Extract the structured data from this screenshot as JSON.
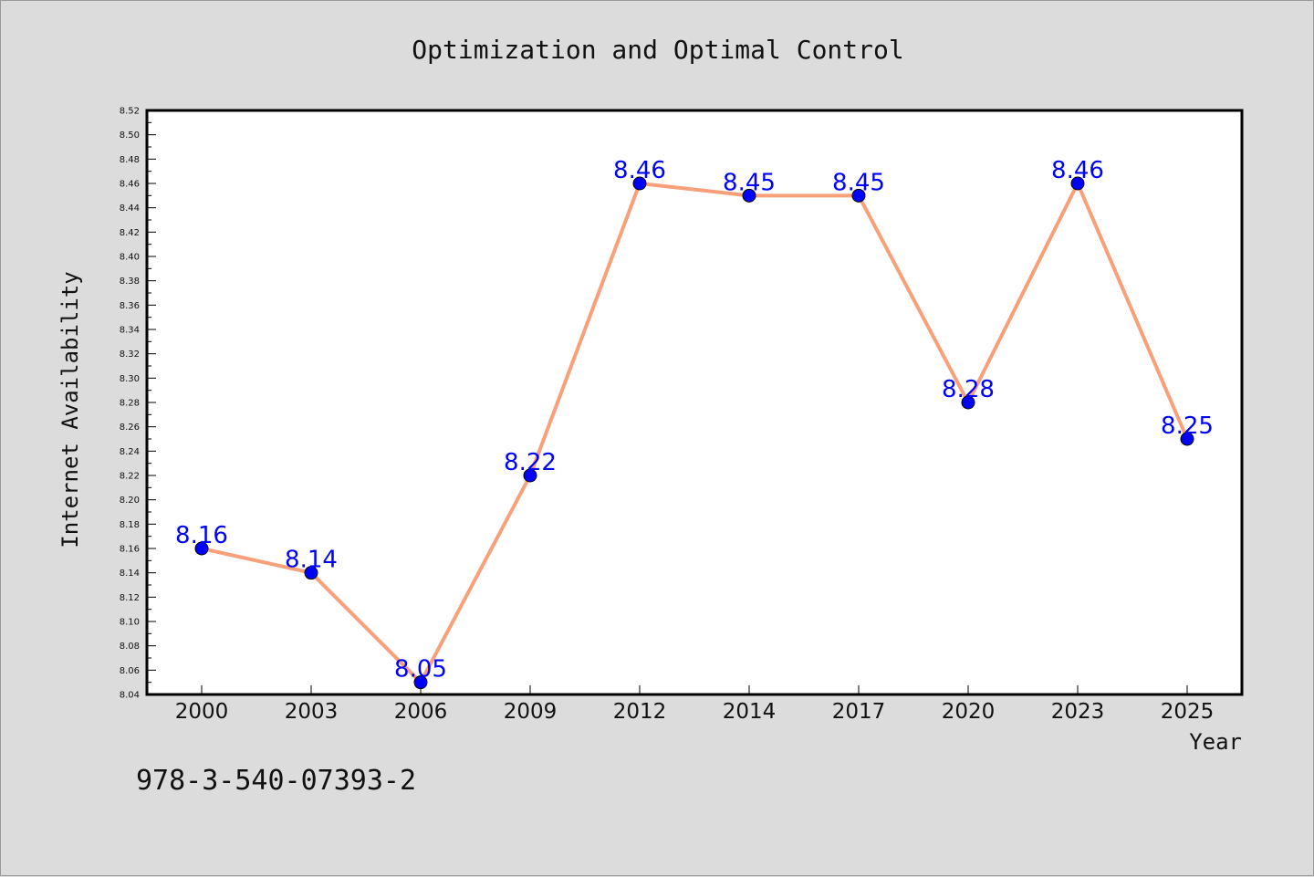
{
  "chart_data": {
    "type": "line",
    "title": "Optimization and Optimal Control",
    "xlabel": "Year",
    "ylabel": "Internet Availability",
    "categories": [
      "2000",
      "2003",
      "2006",
      "2009",
      "2012",
      "2014",
      "2017",
      "2020",
      "2023",
      "2025"
    ],
    "series": [
      {
        "values": [
          8.16,
          8.14,
          8.05,
          8.22,
          8.46,
          8.45,
          8.45,
          8.28,
          8.46,
          8.25
        ],
        "labels": [
          "8.16",
          "8.14",
          "8.05",
          "8.22",
          "8.46",
          "8.45",
          "8.45",
          "8.28",
          "8.46",
          "8.25"
        ],
        "line_color": "#f7a07a",
        "marker_color": "#0000ff"
      }
    ],
    "ylim": [
      8.04,
      8.52
    ],
    "yticks": [
      "8.04",
      "8.06",
      "8.08",
      "8.10",
      "8.12",
      "8.14",
      "8.16",
      "8.18",
      "8.20",
      "8.22",
      "8.24",
      "8.26",
      "8.28",
      "8.30",
      "8.32",
      "8.34",
      "8.36",
      "8.38",
      "8.40",
      "8.42",
      "8.44",
      "8.46",
      "8.48",
      "8.50",
      "8.52"
    ],
    "grid": false,
    "legend": "none"
  },
  "footer": {
    "text": "978-3-540-07393-2"
  }
}
